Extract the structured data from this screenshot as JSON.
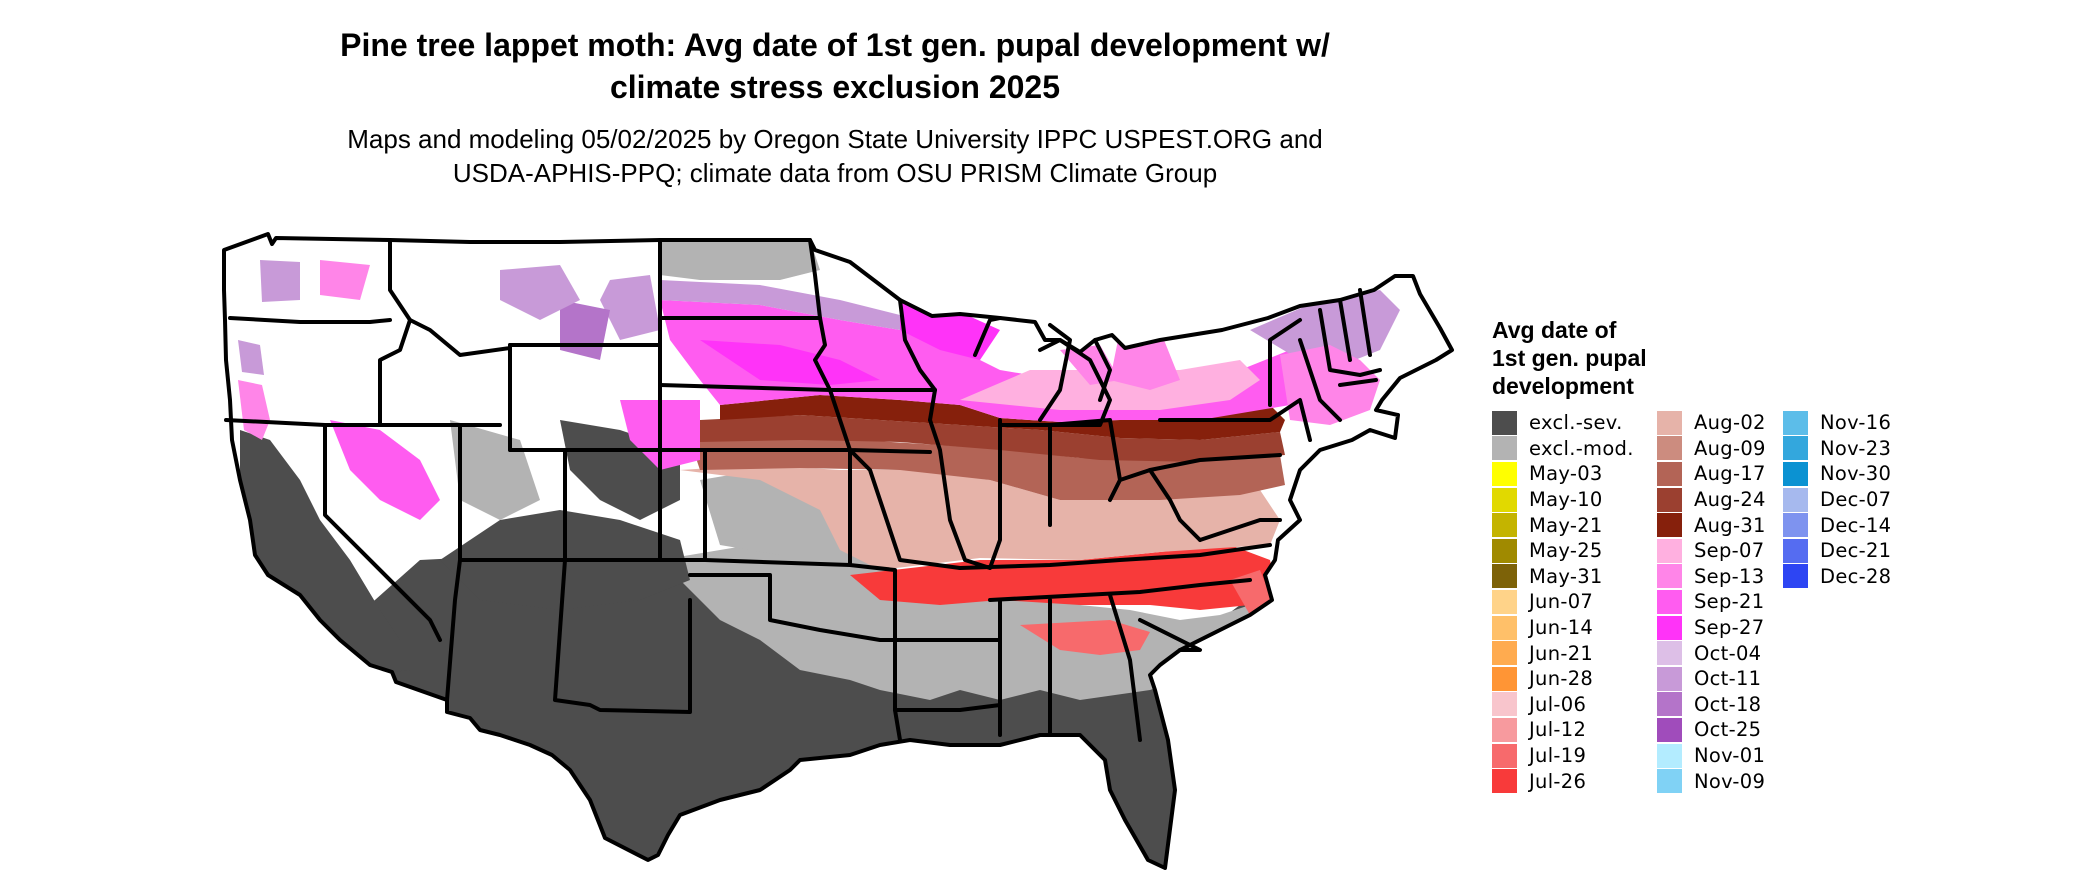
{
  "title": {
    "line1": "Pine tree lappet moth: Avg date of 1st gen. pupal development w/",
    "line2": "climate stress exclusion 2025"
  },
  "subtitle": {
    "line1": "Maps and modeling 05/02/2025 by Oregon State University IPPC USPEST.ORG and",
    "line2": "USDA-APHIS-PPQ; climate data from OSU PRISM Climate Group"
  },
  "legend": {
    "title_lines": [
      "Avg date of",
      "1st gen. pupal",
      "development"
    ],
    "columns": [
      [
        {
          "label": "excl.-sev.",
          "color": "#4d4d4d"
        },
        {
          "label": "excl.-mod.",
          "color": "#b3b3b3"
        },
        {
          "label": "May-03",
          "color": "#ffff00"
        },
        {
          "label": "May-10",
          "color": "#e1d900"
        },
        {
          "label": "May-21",
          "color": "#c4b400"
        },
        {
          "label": "May-25",
          "color": "#a08a00"
        },
        {
          "label": "May-31",
          "color": "#7d6208"
        },
        {
          "label": "Jun-07",
          "color": "#ffd389"
        },
        {
          "label": "Jun-14",
          "color": "#ffc069"
        },
        {
          "label": "Jun-21",
          "color": "#ffab4f"
        },
        {
          "label": "Jun-28",
          "color": "#ff9535"
        },
        {
          "label": "Jul-06",
          "color": "#f8c5cc"
        },
        {
          "label": "Jul-12",
          "color": "#f79a9e"
        },
        {
          "label": "Jul-19",
          "color": "#f76a6c"
        },
        {
          "label": "Jul-26",
          "color": "#f83a3a"
        }
      ],
      [
        {
          "label": "Aug-02",
          "color": "#e6b3a9"
        },
        {
          "label": "Aug-09",
          "color": "#cc8c7f"
        },
        {
          "label": "Aug-17",
          "color": "#b36456"
        },
        {
          "label": "Aug-24",
          "color": "#9b4030"
        },
        {
          "label": "Aug-31",
          "color": "#86200c"
        },
        {
          "label": "Sep-07",
          "color": "#ffb0e0"
        },
        {
          "label": "Sep-13",
          "color": "#ff85e8"
        },
        {
          "label": "Sep-21",
          "color": "#ff5cf0"
        },
        {
          "label": "Sep-27",
          "color": "#ff33f8"
        },
        {
          "label": "Oct-04",
          "color": "#ddbfe7"
        },
        {
          "label": "Oct-11",
          "color": "#c89ad8"
        },
        {
          "label": "Oct-18",
          "color": "#b474c9"
        },
        {
          "label": "Oct-25",
          "color": "#a04cbb"
        },
        {
          "label": "Nov-01",
          "color": "#b3ecff"
        },
        {
          "label": "Nov-09",
          "color": "#80d2f5"
        }
      ],
      [
        {
          "label": "Nov-16",
          "color": "#5cbde9"
        },
        {
          "label": "Nov-23",
          "color": "#33a7dd"
        },
        {
          "label": "Nov-30",
          "color": "#0b92d2"
        },
        {
          "label": "Dec-07",
          "color": "#a6b9ee"
        },
        {
          "label": "Dec-14",
          "color": "#7e93ef"
        },
        {
          "label": "Dec-21",
          "color": "#556cf1"
        },
        {
          "label": "Dec-28",
          "color": "#2d45f3"
        }
      ]
    ]
  }
}
